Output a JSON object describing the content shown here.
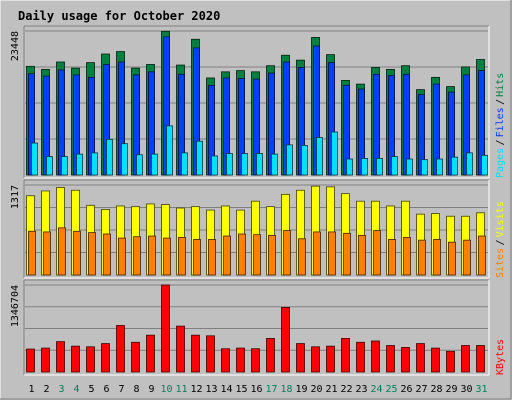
{
  "colors": {
    "background": "#c0c0c0",
    "title": "#0000ff",
    "hits": "#008040",
    "files": "#0040ff",
    "pages": "#00e0ff",
    "visits": "#ffff00",
    "sites": "#ff8000",
    "kbytes": "#ff0000",
    "weekend_day": "#00805c",
    "weekday": "#000000"
  },
  "chart_data": {
    "type": "bar",
    "title": "Daily usage for October 2020",
    "x": [
      "1",
      "2",
      "3",
      "4",
      "5",
      "6",
      "7",
      "8",
      "9",
      "10",
      "11",
      "12",
      "13",
      "14",
      "15",
      "16",
      "17",
      "18",
      "19",
      "20",
      "21",
      "22",
      "23",
      "24",
      "25",
      "26",
      "27",
      "28",
      "29",
      "30",
      "31"
    ],
    "weekend_days": [
      "3",
      "4",
      "10",
      "11",
      "17",
      "18",
      "24",
      "25",
      "31"
    ],
    "panels": [
      {
        "name": "hits-files-pages",
        "max_label": "23448",
        "ymax": 23448,
        "legend": [
          {
            "label": "Pages",
            "color_key": "pages"
          },
          {
            "label": "/",
            "color_key": "weekday"
          },
          {
            "label": "Files",
            "color_key": "files"
          },
          {
            "label": "/",
            "color_key": "weekday"
          },
          {
            "label": "Hits",
            "color_key": "hits"
          }
        ],
        "series": [
          {
            "name": "Hits",
            "color_key": "hits",
            "values": [
              17700,
              17200,
              18400,
              17400,
              18300,
              19700,
              20100,
              17400,
              18000,
              23400,
              17900,
              22100,
              15800,
              16800,
              17000,
              16800,
              17800,
              19500,
              18700,
              22400,
              19600,
              15400,
              14800,
              17500,
              17200,
              17800,
              13900,
              15900,
              14400,
              17600,
              18800
            ]
          },
          {
            "name": "Files",
            "color_key": "files",
            "values": [
              16500,
              16100,
              17100,
              16300,
              15900,
              18000,
              18400,
              16300,
              16800,
              22500,
              16400,
              20700,
              14600,
              15800,
              15700,
              15600,
              16600,
              18400,
              17500,
              21000,
              18300,
              14600,
              14000,
              16400,
              16200,
              16400,
              13100,
              14800,
              13500,
              16300,
              17000
            ]
          },
          {
            "name": "Pages",
            "color_key": "pages",
            "values": [
              5200,
              3000,
              3000,
              3400,
              3600,
              5800,
              5100,
              3300,
              3400,
              8000,
              3600,
              5500,
              3100,
              3500,
              3500,
              3500,
              3400,
              4900,
              4800,
              6100,
              7000,
              2600,
              2700,
              2700,
              3000,
              2600,
              2500,
              2600,
              2900,
              3600,
              3200
            ]
          }
        ]
      },
      {
        "name": "visits-sites",
        "max_label": "1317",
        "ymax": 1317,
        "legend": [
          {
            "label": "Sites",
            "color_key": "sites"
          },
          {
            "label": "/",
            "color_key": "weekday"
          },
          {
            "label": "Visits",
            "color_key": "visits"
          }
        ],
        "series": [
          {
            "name": "Visits",
            "color_key": "visits",
            "values": [
              1160,
              1230,
              1280,
              1240,
              1020,
              960,
              1010,
              1000,
              1040,
              1030,
              980,
              1000,
              950,
              1010,
              950,
              1080,
              1000,
              1180,
              1240,
              1300,
              1290,
              1190,
              1080,
              1080,
              1010,
              1080,
              890,
              900,
              860,
              860,
              910
            ]
          },
          {
            "name": "Sites",
            "color_key": "sites",
            "values": [
              640,
              630,
              690,
              640,
              620,
              600,
              540,
              560,
              570,
              540,
              550,
              520,
              520,
              570,
              600,
              590,
              580,
              650,
              530,
              630,
              630,
              610,
              580,
              650,
              520,
              550,
              510,
              520,
              480,
              510,
              570
            ]
          }
        ]
      },
      {
        "name": "kbytes",
        "max_label": "1346704",
        "ymax": 1346704,
        "legend": [
          {
            "label": "KBytes",
            "color_key": "kbytes"
          }
        ],
        "series": [
          {
            "name": "KBytes",
            "color_key": "kbytes",
            "values": [
              355000,
              370000,
              470000,
              400000,
              390000,
              440000,
              720000,
              460000,
              570000,
              1346704,
              710000,
              570000,
              560000,
              360000,
              370000,
              360000,
              520000,
              1000000,
              440000,
              390000,
              400000,
              520000,
              460000,
              480000,
              410000,
              380000,
              440000,
              370000,
              320000,
              410000,
              410000
            ]
          }
        ]
      }
    ]
  }
}
